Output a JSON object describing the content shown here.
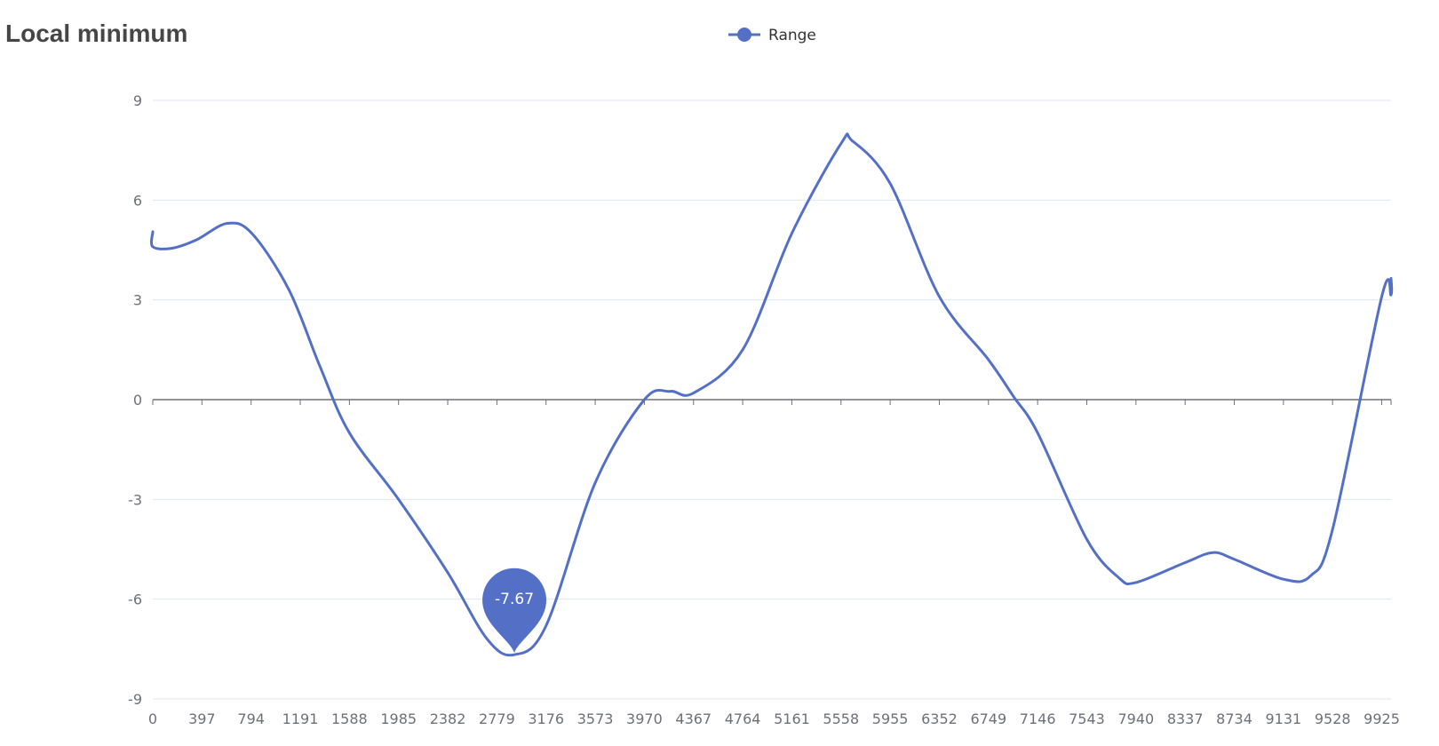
{
  "chart_data": {
    "type": "line",
    "title": "Local minimum",
    "xlabel": "",
    "ylabel": "",
    "ylim": [
      -9,
      9
    ],
    "yticks": [
      9,
      6,
      3,
      0,
      -3,
      -6,
      -9
    ],
    "categories": [
      "0",
      "397",
      "794",
      "1191",
      "1588",
      "1985",
      "2382",
      "2779",
      "3176",
      "3573",
      "3970",
      "4367",
      "4764",
      "5161",
      "5558",
      "5955",
      "6352",
      "6749",
      "7146",
      "7543",
      "7940",
      "8337",
      "8734",
      "9131",
      "9528",
      "9925"
    ],
    "xmax": 10000,
    "grid": true,
    "legend_position": "top-center",
    "smooth": true,
    "series": [
      {
        "name": "Range",
        "color": "#5470c6",
        "points": [
          [
            0,
            5.05
          ],
          [
            0,
            4.6
          ],
          [
            150,
            4.55
          ],
          [
            350,
            4.8
          ],
          [
            600,
            5.3
          ],
          [
            800,
            5.0
          ],
          [
            1100,
            3.3
          ],
          [
            1350,
            1.0
          ],
          [
            1588,
            -1.0
          ],
          [
            1985,
            -3.0
          ],
          [
            2382,
            -5.2
          ],
          [
            2700,
            -7.2
          ],
          [
            2920,
            -7.67
          ],
          [
            3176,
            -6.8
          ],
          [
            3573,
            -2.5
          ],
          [
            3970,
            0.0
          ],
          [
            4180,
            0.25
          ],
          [
            4367,
            0.2
          ],
          [
            4764,
            1.5
          ],
          [
            5161,
            5.0
          ],
          [
            5558,
            7.7
          ],
          [
            5650,
            7.78
          ],
          [
            5955,
            6.5
          ],
          [
            6352,
            3.1
          ],
          [
            6749,
            1.2
          ],
          [
            6950,
            0.1
          ],
          [
            7146,
            -1.0
          ],
          [
            7543,
            -4.2
          ],
          [
            7800,
            -5.35
          ],
          [
            7940,
            -5.5
          ],
          [
            8337,
            -4.9
          ],
          [
            8560,
            -4.6
          ],
          [
            8734,
            -4.8
          ],
          [
            9131,
            -5.4
          ],
          [
            9350,
            -5.3
          ],
          [
            9528,
            -3.9
          ],
          [
            9925,
            3.1
          ],
          [
            10000,
            3.15
          ],
          [
            10000,
            3.65
          ]
        ]
      }
    ],
    "annotations": [
      {
        "type": "min-marker",
        "x": 2920,
        "y": -7.67,
        "label": "-7.67"
      }
    ]
  }
}
